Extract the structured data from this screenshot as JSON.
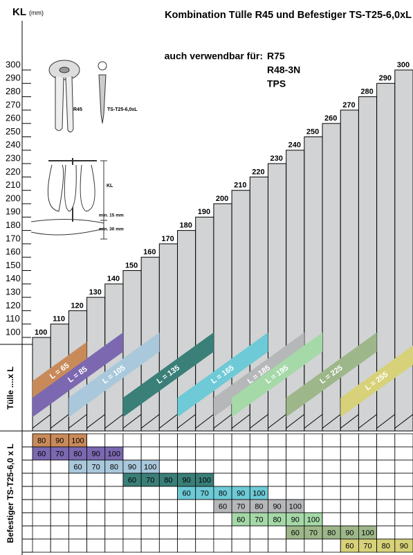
{
  "chart_data": {
    "type": "bar",
    "title": "Kombination Tülle R45 und Befestiger TS-T25-6,0xL",
    "y_label": "KL",
    "y_unit": "(mm)",
    "subtitle": "auch verwendbar für:",
    "also_usable": [
      "R75",
      "R48-3N",
      "TPS"
    ],
    "values": [
      100,
      110,
      120,
      130,
      140,
      150,
      160,
      170,
      180,
      190,
      200,
      210,
      220,
      230,
      240,
      250,
      260,
      270,
      280,
      290,
      300
    ],
    "color": "#d1d3d4",
    "ylim": [
      100,
      300
    ],
    "yticks": [
      100,
      110,
      120,
      130,
      140,
      150,
      160,
      170,
      180,
      190,
      200,
      210,
      220,
      230,
      240,
      250,
      260,
      270,
      280,
      290,
      300
    ]
  },
  "illustration": {
    "dowel": "R45",
    "screw": "TS-T25-6,0xL",
    "kl": "KL",
    "min1": "min. 15 mm",
    "min2": "min. 30 mm"
  },
  "sections": {
    "sleeve": "Tülle ....x L",
    "fastener": "Befestiger TS-T25-6,0 x L"
  },
  "table": {
    "rows": [
      {
        "label": "L = 65",
        "color": "#c98a5a",
        "cells": [
          80,
          90,
          100,
          null,
          null,
          null,
          null,
          null,
          null,
          null,
          null,
          null,
          null,
          null,
          null,
          null,
          null,
          null,
          null,
          null,
          null
        ]
      },
      {
        "label": "L = 85",
        "color": "#7b68b0",
        "cells": [
          60,
          70,
          80,
          90,
          100,
          null,
          null,
          null,
          null,
          null,
          null,
          null,
          null,
          null,
          null,
          null,
          null,
          null,
          null,
          null,
          null
        ]
      },
      {
        "label": "L = 105",
        "color": "#a9c8dc",
        "cells": [
          null,
          null,
          60,
          70,
          80,
          90,
          100,
          null,
          null,
          null,
          null,
          null,
          null,
          null,
          null,
          null,
          null,
          null,
          null,
          null,
          null
        ]
      },
      {
        "label": "L = 135",
        "color": "#3a7f78",
        "cells": [
          null,
          null,
          null,
          null,
          null,
          60,
          70,
          80,
          90,
          100,
          null,
          null,
          null,
          null,
          null,
          null,
          null,
          null,
          null,
          null,
          null
        ]
      },
      {
        "label": "L = 165",
        "color": "#6dcad6",
        "cells": [
          null,
          null,
          null,
          null,
          null,
          null,
          null,
          null,
          60,
          70,
          80,
          90,
          100,
          null,
          null,
          null,
          null,
          null,
          null,
          null,
          null
        ]
      },
      {
        "label": "L = 185",
        "color": "#b5b7b9",
        "cells": [
          null,
          null,
          null,
          null,
          null,
          null,
          null,
          null,
          null,
          null,
          60,
          70,
          80,
          90,
          100,
          null,
          null,
          null,
          null,
          null,
          null
        ]
      },
      {
        "label": "L = 195",
        "color": "#a5d9a8",
        "cells": [
          null,
          null,
          null,
          null,
          null,
          null,
          null,
          null,
          null,
          null,
          null,
          60,
          70,
          80,
          90,
          100,
          null,
          null,
          null,
          null,
          null
        ]
      },
      {
        "label": "L = 225",
        "color": "#9db78a",
        "cells": [
          null,
          null,
          null,
          null,
          null,
          null,
          null,
          null,
          null,
          null,
          null,
          null,
          null,
          null,
          60,
          70,
          80,
          90,
          100,
          null,
          null
        ]
      },
      {
        "label": "L = 255",
        "color": "#d7d27a",
        "cells": [
          null,
          null,
          null,
          null,
          null,
          null,
          null,
          null,
          null,
          null,
          null,
          null,
          null,
          null,
          null,
          null,
          null,
          60,
          70,
          80,
          90
        ]
      }
    ]
  }
}
